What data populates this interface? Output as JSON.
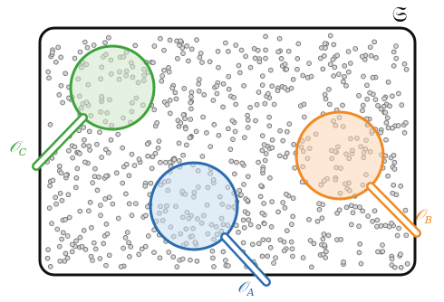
{
  "diagram": {
    "container_label": "𝔖",
    "observers": [
      {
        "name": "A",
        "label_main": "𝒪",
        "label_sub": "A",
        "color": "#2b6cb0",
        "fill": "#c7dcef"
      },
      {
        "name": "B",
        "label_main": "𝒪",
        "label_sub": "B",
        "color": "#f08a24",
        "fill": "#fbd6b4"
      },
      {
        "name": "C",
        "label_main": "𝒪",
        "label_sub": "C",
        "color": "#3da33a",
        "fill": "#cfe8c8"
      }
    ],
    "colors": {
      "border": "#111111",
      "particle_fill": "#d6d6d6",
      "particle_stroke": "#6f6f6f",
      "background": "#ffffff"
    }
  }
}
